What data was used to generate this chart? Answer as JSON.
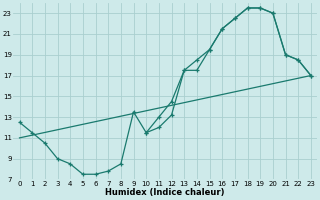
{
  "xlabel": "Humidex (Indice chaleur)",
  "bg_color": "#ceeaea",
  "grid_color": "#aacfcf",
  "line_color": "#1a7a6e",
  "xlim": [
    -0.5,
    23.5
  ],
  "ylim": [
    7,
    24
  ],
  "xticks": [
    0,
    1,
    2,
    3,
    4,
    5,
    6,
    7,
    8,
    9,
    10,
    11,
    12,
    13,
    14,
    15,
    16,
    17,
    18,
    19,
    20,
    21,
    22,
    23
  ],
  "yticks": [
    7,
    9,
    11,
    13,
    15,
    17,
    19,
    21,
    23
  ],
  "line1_x": [
    0,
    1,
    2,
    3,
    4,
    5,
    6,
    7,
    8,
    9,
    10,
    11,
    12,
    13,
    14,
    15,
    16,
    17,
    18,
    19,
    20,
    21,
    22,
    23
  ],
  "line1_y": [
    12.5,
    11.5,
    10.5,
    9.0,
    8.5,
    7.5,
    7.5,
    7.8,
    8.5,
    13.5,
    11.5,
    12.0,
    13.2,
    17.5,
    17.5,
    19.5,
    21.5,
    22.5,
    23.5,
    23.5,
    23.0,
    19.0,
    18.5,
    17.0
  ],
  "line2_x": [
    10,
    11,
    12,
    13,
    14,
    15,
    16,
    17,
    18,
    19,
    20,
    21,
    22,
    23
  ],
  "line2_y": [
    11.5,
    13.0,
    14.5,
    17.5,
    18.5,
    19.5,
    21.5,
    22.5,
    23.5,
    23.5,
    23.0,
    19.0,
    18.5,
    17.0
  ],
  "line3_x": [
    0,
    23
  ],
  "line3_y": [
    11.0,
    17.0
  ]
}
